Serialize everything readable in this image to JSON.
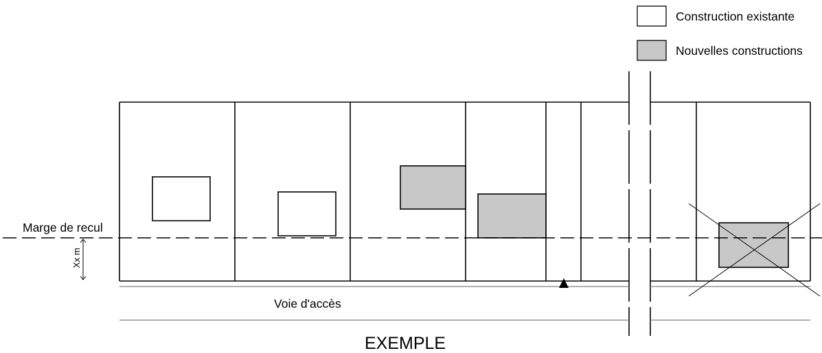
{
  "legend": {
    "existing_label": "Construction existante",
    "new_label": "Nouvelles constructions"
  },
  "labels": {
    "setback": "Marge de recul",
    "distance": "Xx m",
    "road": "Voie d'accès",
    "caption": "EXEMPLE"
  },
  "colors": {
    "stroke": "#000000",
    "new_fill": "#c8c8c8",
    "existing_fill": "#ffffff",
    "road_line": "#808080"
  }
}
